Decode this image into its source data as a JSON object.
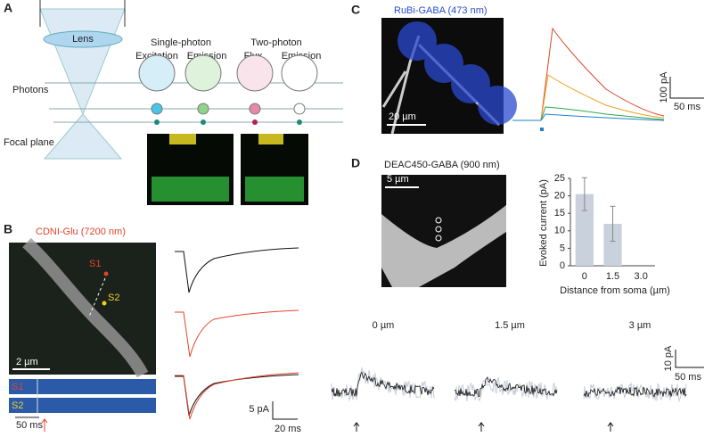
{
  "panels": {
    "A": {
      "label": "A",
      "lens": "Lens",
      "single_photon": "Single-photon",
      "excitation": "Excitation",
      "emission_1": "Emission",
      "two_photon": "Two-photon",
      "flux": "Flux",
      "emission_2": "Emission",
      "photons": "Photons",
      "focal_plane": "Focal plane"
    },
    "B": {
      "label": "B",
      "title": "CDNI-Glu (7200 nm)",
      "s1": "S1",
      "s2": "S2",
      "scale_um": "2 µm",
      "strip_s1": "S1",
      "strip_s2": "S2",
      "strip_ms": "50 ms",
      "scale_pa": "5 pA",
      "scale_ms": "20 ms"
    },
    "C": {
      "label": "C",
      "title": "RuBi-GABA (473 nm)",
      "scale_um": "20 µm",
      "scale_pa": "100 pA",
      "scale_ms": "50 ms"
    },
    "D": {
      "label": "D",
      "title": "DEAC450-GABA (900 nm)",
      "scale_um": "5 µm",
      "trace_labels": [
        "0 µm",
        "1.5 µm",
        "3 µm"
      ],
      "scale_pa": "10 pA",
      "scale_ms": "50 ms"
    }
  },
  "chart_data": {
    "type": "bar",
    "categories": [
      "0",
      "1.5",
      "3.0"
    ],
    "values": [
      20.5,
      12,
      null
    ],
    "errors": [
      4.7,
      5,
      null
    ],
    "color": "#c8d1dc",
    "ylim": [
      0,
      25
    ],
    "yticks": [
      0,
      5,
      10,
      15,
      20,
      25
    ],
    "ylabel": "Evoked current (pA)",
    "xlabel": "Distance from soma (µm)"
  }
}
